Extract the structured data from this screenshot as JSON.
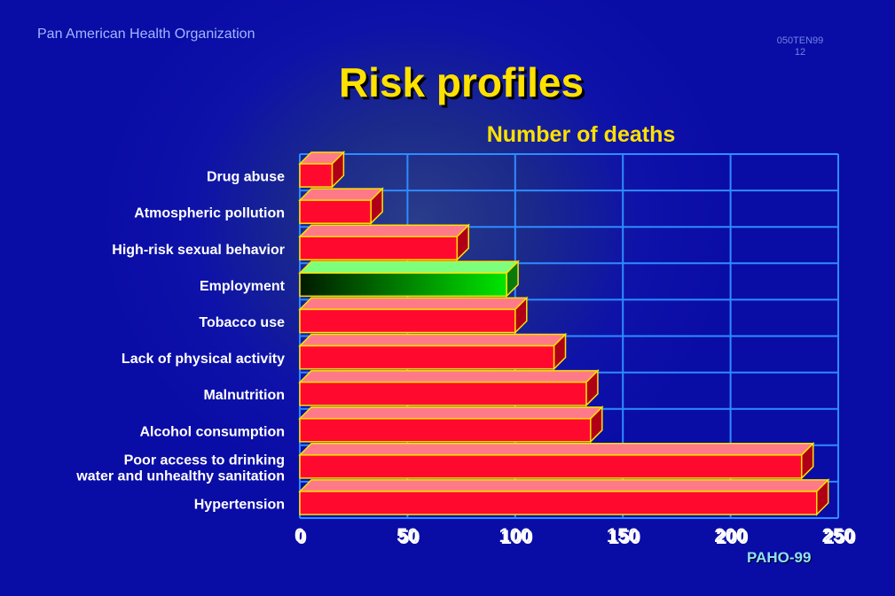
{
  "header": {
    "organization": "Pan American Health Organization",
    "slide_code_line1": "050TEN99",
    "slide_code_line2": "12",
    "footer": "PAHO-99"
  },
  "colors": {
    "bar": "#ff0a2e",
    "bar_highlight": "#00e600",
    "grid": "#2e8cff",
    "title": "#ffe100",
    "highlight_label": "#ffe100"
  },
  "chart_data": {
    "type": "bar",
    "orientation": "horizontal",
    "title": "Risk profiles",
    "subtitle": "Number of deaths",
    "xlabel": "",
    "ylabel": "",
    "xlim": [
      0,
      250
    ],
    "x_ticks": [
      "0",
      "50",
      "100",
      "150",
      "200",
      "250"
    ],
    "grid": true,
    "highlighted_category": "Employment",
    "categories": [
      [
        "Drug abuse"
      ],
      [
        "Atmospheric pollution"
      ],
      [
        "High-risk sexual behavior"
      ],
      [
        "Employment"
      ],
      [
        "Tobacco use"
      ],
      [
        "Lack of physical activity"
      ],
      [
        "Malnutrition"
      ],
      [
        "Alcohol consumption"
      ],
      [
        "Poor access to drinking",
        "water and unhealthy sanitation"
      ],
      [
        "Hypertension"
      ]
    ],
    "values": [
      15,
      33,
      73,
      96,
      100,
      118,
      133,
      135,
      233,
      240
    ]
  }
}
